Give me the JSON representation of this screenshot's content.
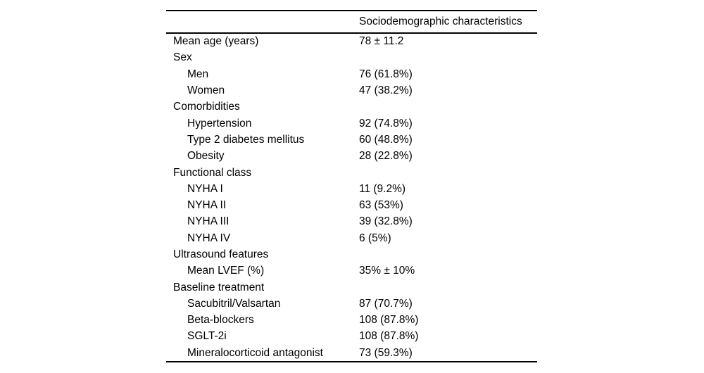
{
  "page": {
    "background": "#ffffff"
  },
  "colors": {
    "text": "#000000",
    "rule": "#000000",
    "background": "#ffffff"
  },
  "table": {
    "header": "Sociodemographic characteristics",
    "rows": [
      {
        "label": "Mean age (years)",
        "value": "78 ± 11.2",
        "indent": 0
      },
      {
        "label": "Sex",
        "value": "",
        "indent": 0
      },
      {
        "label": "Men",
        "value": "76 (61.8%)",
        "indent": 1
      },
      {
        "label": "Women",
        "value": "47 (38.2%)",
        "indent": 1
      },
      {
        "label": "Comorbidities",
        "value": "",
        "indent": 0
      },
      {
        "label": "Hypertension",
        "value": "92 (74.8%)",
        "indent": 1
      },
      {
        "label": "Type 2 diabetes mellitus",
        "value": "60 (48.8%)",
        "indent": 1
      },
      {
        "label": "Obesity",
        "value": "28 (22.8%)",
        "indent": 1
      },
      {
        "label": "Functional class",
        "value": "",
        "indent": 0
      },
      {
        "label": "NYHA I",
        "value": "11 (9.2%)",
        "indent": 1
      },
      {
        "label": "NYHA II",
        "value": "63 (53%)",
        "indent": 1
      },
      {
        "label": "NYHA III",
        "value": "39 (32.8%)",
        "indent": 1
      },
      {
        "label": "NYHA IV",
        "value": "6 (5%)",
        "indent": 1
      },
      {
        "label": "Ultrasound features",
        "value": "",
        "indent": 0
      },
      {
        "label": "Mean LVEF (%)",
        "value": "35% ± 10%",
        "indent": 1
      },
      {
        "label": "Baseline treatment",
        "value": "",
        "indent": 0
      },
      {
        "label": "Sacubitril/Valsartan",
        "value": "87 (70.7%)",
        "indent": 1
      },
      {
        "label": "Beta-blockers",
        "value": "108 (87.8%)",
        "indent": 1
      },
      {
        "label": "SGLT-2i",
        "value": "108 (87.8%)",
        "indent": 1
      },
      {
        "label": "Mineralocorticoid antagonist",
        "value": "73 (59.3%)",
        "indent": 1
      }
    ]
  }
}
